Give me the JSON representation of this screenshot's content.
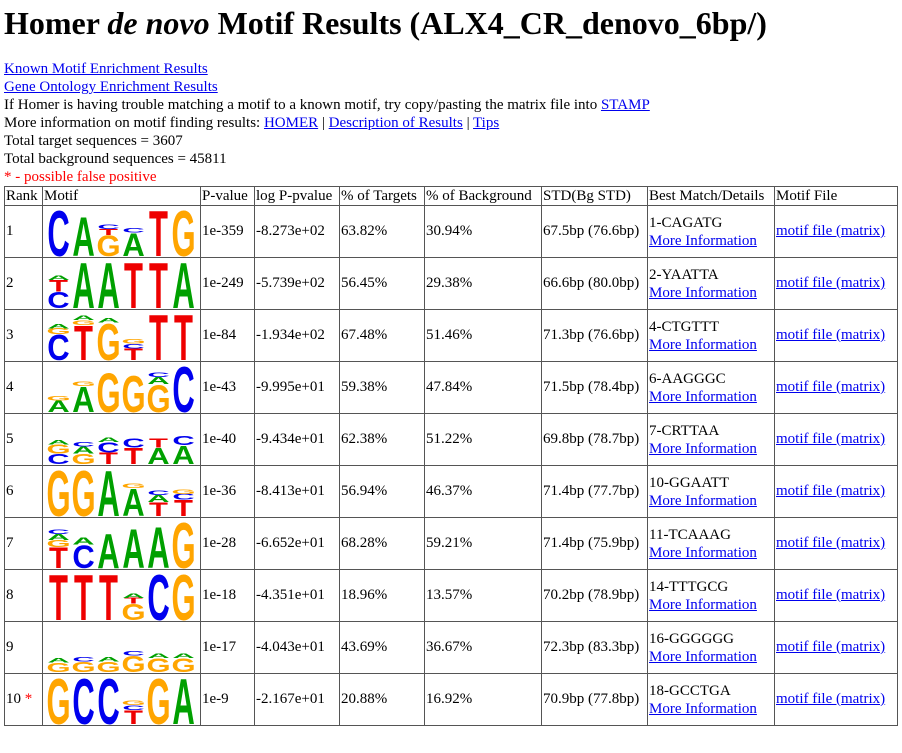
{
  "title": {
    "prefix": "Homer ",
    "italic": "de novo",
    "suffix": " Motif Results (ALX4_CR_denovo_6bp/)"
  },
  "links": {
    "known": "Known Motif Enrichment Results",
    "go": "Gene Ontology Enrichment Results"
  },
  "info": {
    "stamp_text": "If Homer is having trouble matching a motif to a known motif, try copy/pasting the matrix file into ",
    "stamp_link": "STAMP",
    "more_text": "More information on motif finding results: ",
    "homer_link": "HOMER",
    "sep": " | ",
    "desc_link": "Description of Results",
    "tips_link": "Tips",
    "total_target": "Total target sequences = 3607",
    "total_background": "Total background sequences = 45811",
    "false_positive": "* - possible false positive"
  },
  "table": {
    "headers": [
      "Rank",
      "Motif",
      "P-value",
      "log P-pvalue",
      "% of Targets",
      "% of Background",
      "STD(Bg STD)",
      "Best Match/Details",
      "Motif File"
    ],
    "more_info_label": "More Information",
    "motif_file_label": "motif file (matrix)",
    "rows": [
      {
        "rank": "1",
        "star": "",
        "pvalue": "1e-359",
        "logp": "-8.273e+02",
        "targets": "63.82%",
        "background": "30.94%",
        "std": "67.5bp (76.6bp)",
        "best": "1-CAGATG"
      },
      {
        "rank": "2",
        "star": "",
        "pvalue": "1e-249",
        "logp": "-5.739e+02",
        "targets": "56.45%",
        "background": "29.38%",
        "std": "66.6bp (80.0bp)",
        "best": "2-YAATTA"
      },
      {
        "rank": "3",
        "star": "",
        "pvalue": "1e-84",
        "logp": "-1.934e+02",
        "targets": "67.48%",
        "background": "51.46%",
        "std": "71.3bp (76.6bp)",
        "best": "4-CTGTTT"
      },
      {
        "rank": "4",
        "star": "",
        "pvalue": "1e-43",
        "logp": "-9.995e+01",
        "targets": "59.38%",
        "background": "47.84%",
        "std": "71.5bp (78.4bp)",
        "best": "6-AAGGGC"
      },
      {
        "rank": "5",
        "star": "",
        "pvalue": "1e-40",
        "logp": "-9.434e+01",
        "targets": "62.38%",
        "background": "51.22%",
        "std": "69.8bp (78.7bp)",
        "best": "7-CRTTAA"
      },
      {
        "rank": "6",
        "star": "",
        "pvalue": "1e-36",
        "logp": "-8.413e+01",
        "targets": "56.94%",
        "background": "46.37%",
        "std": "71.4bp (77.7bp)",
        "best": "10-GGAATT"
      },
      {
        "rank": "7",
        "star": "",
        "pvalue": "1e-28",
        "logp": "-6.652e+01",
        "targets": "68.28%",
        "background": "59.21%",
        "std": "71.4bp (75.9bp)",
        "best": "11-TCAAAG"
      },
      {
        "rank": "8",
        "star": "",
        "pvalue": "1e-18",
        "logp": "-4.351e+01",
        "targets": "18.96%",
        "background": "13.57%",
        "std": "70.2bp (78.9bp)",
        "best": "14-TTTGCG"
      },
      {
        "rank": "9",
        "star": "",
        "pvalue": "1e-17",
        "logp": "-4.043e+01",
        "targets": "43.69%",
        "background": "36.67%",
        "std": "72.3bp (83.3bp)",
        "best": "16-GGGGGG"
      },
      {
        "rank": "10",
        "star": "*",
        "pvalue": "1e-9",
        "logp": "-2.167e+01",
        "targets": "20.88%",
        "background": "16.92%",
        "std": "70.9bp (77.8bp)",
        "best": "18-GCCTGA"
      }
    ]
  },
  "base_colors": {
    "A": "#00a000",
    "C": "#0000ee",
    "G": "#ffa500",
    "T": "#ee0000"
  },
  "logos": [
    [
      [
        {
          "b": "C",
          "h": 1.0
        }
      ],
      [
        {
          "b": "A",
          "h": 0.85
        }
      ],
      [
        {
          "b": "G",
          "h": 0.45
        },
        {
          "b": "T",
          "h": 0.12
        },
        {
          "b": "C",
          "h": 0.1
        }
      ],
      [
        {
          "b": "A",
          "h": 0.5
        },
        {
          "b": "C",
          "h": 0.1
        }
      ],
      [
        {
          "b": "T",
          "h": 1.0
        }
      ],
      [
        {
          "b": "G",
          "h": 1.0
        }
      ]
    ],
    [
      [
        {
          "b": "C",
          "h": 0.35
        },
        {
          "b": "T",
          "h": 0.25
        },
        {
          "b": "A",
          "h": 0.1
        }
      ],
      [
        {
          "b": "A",
          "h": 1.0
        }
      ],
      [
        {
          "b": "A",
          "h": 1.0
        }
      ],
      [
        {
          "b": "T",
          "h": 1.0
        }
      ],
      [
        {
          "b": "T",
          "h": 1.0
        }
      ],
      [
        {
          "b": "A",
          "h": 1.0
        }
      ]
    ],
    [
      [
        {
          "b": "C",
          "h": 0.55
        },
        {
          "b": "G",
          "h": 0.12
        },
        {
          "b": "A",
          "h": 0.1
        }
      ],
      [
        {
          "b": "T",
          "h": 0.75
        },
        {
          "b": "G",
          "h": 0.1
        },
        {
          "b": "A",
          "h": 0.1
        }
      ],
      [
        {
          "b": "G",
          "h": 0.8
        },
        {
          "b": "A",
          "h": 0.1
        }
      ],
      [
        {
          "b": "T",
          "h": 0.25
        },
        {
          "b": "C",
          "h": 0.1
        },
        {
          "b": "G",
          "h": 0.1
        }
      ],
      [
        {
          "b": "T",
          "h": 1.0
        }
      ],
      [
        {
          "b": "T",
          "h": 1.0
        }
      ]
    ],
    [
      [
        {
          "b": "A",
          "h": 0.25
        },
        {
          "b": "G",
          "h": 0.1
        }
      ],
      [
        {
          "b": "A",
          "h": 0.55
        },
        {
          "b": "G",
          "h": 0.1
        }
      ],
      [
        {
          "b": "G",
          "h": 0.85
        }
      ],
      [
        {
          "b": "G",
          "h": 0.8
        }
      ],
      [
        {
          "b": "G",
          "h": 0.6
        },
        {
          "b": "A",
          "h": 0.15
        },
        {
          "b": "C",
          "h": 0.1
        }
      ],
      [
        {
          "b": "C",
          "h": 1.0
        }
      ]
    ],
    [
      [
        {
          "b": "C",
          "h": 0.22
        },
        {
          "b": "G",
          "h": 0.2
        },
        {
          "b": "A",
          "h": 0.1
        }
      ],
      [
        {
          "b": "G",
          "h": 0.22
        },
        {
          "b": "A",
          "h": 0.15
        },
        {
          "b": "C",
          "h": 0.1
        }
      ],
      [
        {
          "b": "T",
          "h": 0.25
        },
        {
          "b": "C",
          "h": 0.22
        },
        {
          "b": "A",
          "h": 0.1
        }
      ],
      [
        {
          "b": "T",
          "h": 0.35
        },
        {
          "b": "C",
          "h": 0.2
        }
      ],
      [
        {
          "b": "A",
          "h": 0.35
        },
        {
          "b": "T",
          "h": 0.2
        }
      ],
      [
        {
          "b": "A",
          "h": 0.4
        },
        {
          "b": "C",
          "h": 0.2
        }
      ]
    ],
    [
      [
        {
          "b": "G",
          "h": 1.0
        }
      ],
      [
        {
          "b": "G",
          "h": 1.0
        }
      ],
      [
        {
          "b": "A",
          "h": 1.0
        }
      ],
      [
        {
          "b": "A",
          "h": 0.6
        },
        {
          "b": "G",
          "h": 0.1
        }
      ],
      [
        {
          "b": "T",
          "h": 0.3
        },
        {
          "b": "A",
          "h": 0.15
        },
        {
          "b": "C",
          "h": 0.1
        }
      ],
      [
        {
          "b": "T",
          "h": 0.35
        },
        {
          "b": "C",
          "h": 0.12
        },
        {
          "b": "G",
          "h": 0.1
        }
      ]
    ],
    [
      [
        {
          "b": "T",
          "h": 0.45
        },
        {
          "b": "G",
          "h": 0.15
        },
        {
          "b": "A",
          "h": 0.12
        },
        {
          "b": "C",
          "h": 0.1
        }
      ],
      [
        {
          "b": "C",
          "h": 0.5
        },
        {
          "b": "A",
          "h": 0.15
        }
      ],
      [
        {
          "b": "A",
          "h": 0.75
        }
      ],
      [
        {
          "b": "A",
          "h": 0.85
        }
      ],
      [
        {
          "b": "A",
          "h": 0.9
        }
      ],
      [
        {
          "b": "G",
          "h": 1.0
        }
      ]
    ],
    [
      [
        {
          "b": "T",
          "h": 1.0
        }
      ],
      [
        {
          "b": "T",
          "h": 1.0
        }
      ],
      [
        {
          "b": "T",
          "h": 1.0
        }
      ],
      [
        {
          "b": "G",
          "h": 0.35
        },
        {
          "b": "T",
          "h": 0.12
        },
        {
          "b": "A",
          "h": 0.1
        }
      ],
      [
        {
          "b": "C",
          "h": 1.0
        }
      ],
      [
        {
          "b": "G",
          "h": 1.0
        }
      ]
    ],
    [
      [
        {
          "b": "G",
          "h": 0.2
        },
        {
          "b": "A",
          "h": 0.1
        }
      ],
      [
        {
          "b": "G",
          "h": 0.22
        },
        {
          "b": "C",
          "h": 0.1
        }
      ],
      [
        {
          "b": "G",
          "h": 0.22
        },
        {
          "b": "A",
          "h": 0.1
        }
      ],
      [
        {
          "b": "G",
          "h": 0.35
        },
        {
          "b": "C",
          "h": 0.1
        }
      ],
      [
        {
          "b": "G",
          "h": 0.3
        },
        {
          "b": "A",
          "h": 0.1
        }
      ],
      [
        {
          "b": "G",
          "h": 0.3
        },
        {
          "b": "A",
          "h": 0.1
        }
      ]
    ],
    [
      [
        {
          "b": "G",
          "h": 1.0
        }
      ],
      [
        {
          "b": "C",
          "h": 1.0
        }
      ],
      [
        {
          "b": "C",
          "h": 1.0
        }
      ],
      [
        {
          "b": "T",
          "h": 0.3
        },
        {
          "b": "C",
          "h": 0.1
        },
        {
          "b": "G",
          "h": 0.1
        }
      ],
      [
        {
          "b": "G",
          "h": 1.0
        }
      ],
      [
        {
          "b": "A",
          "h": 1.0
        }
      ]
    ]
  ]
}
